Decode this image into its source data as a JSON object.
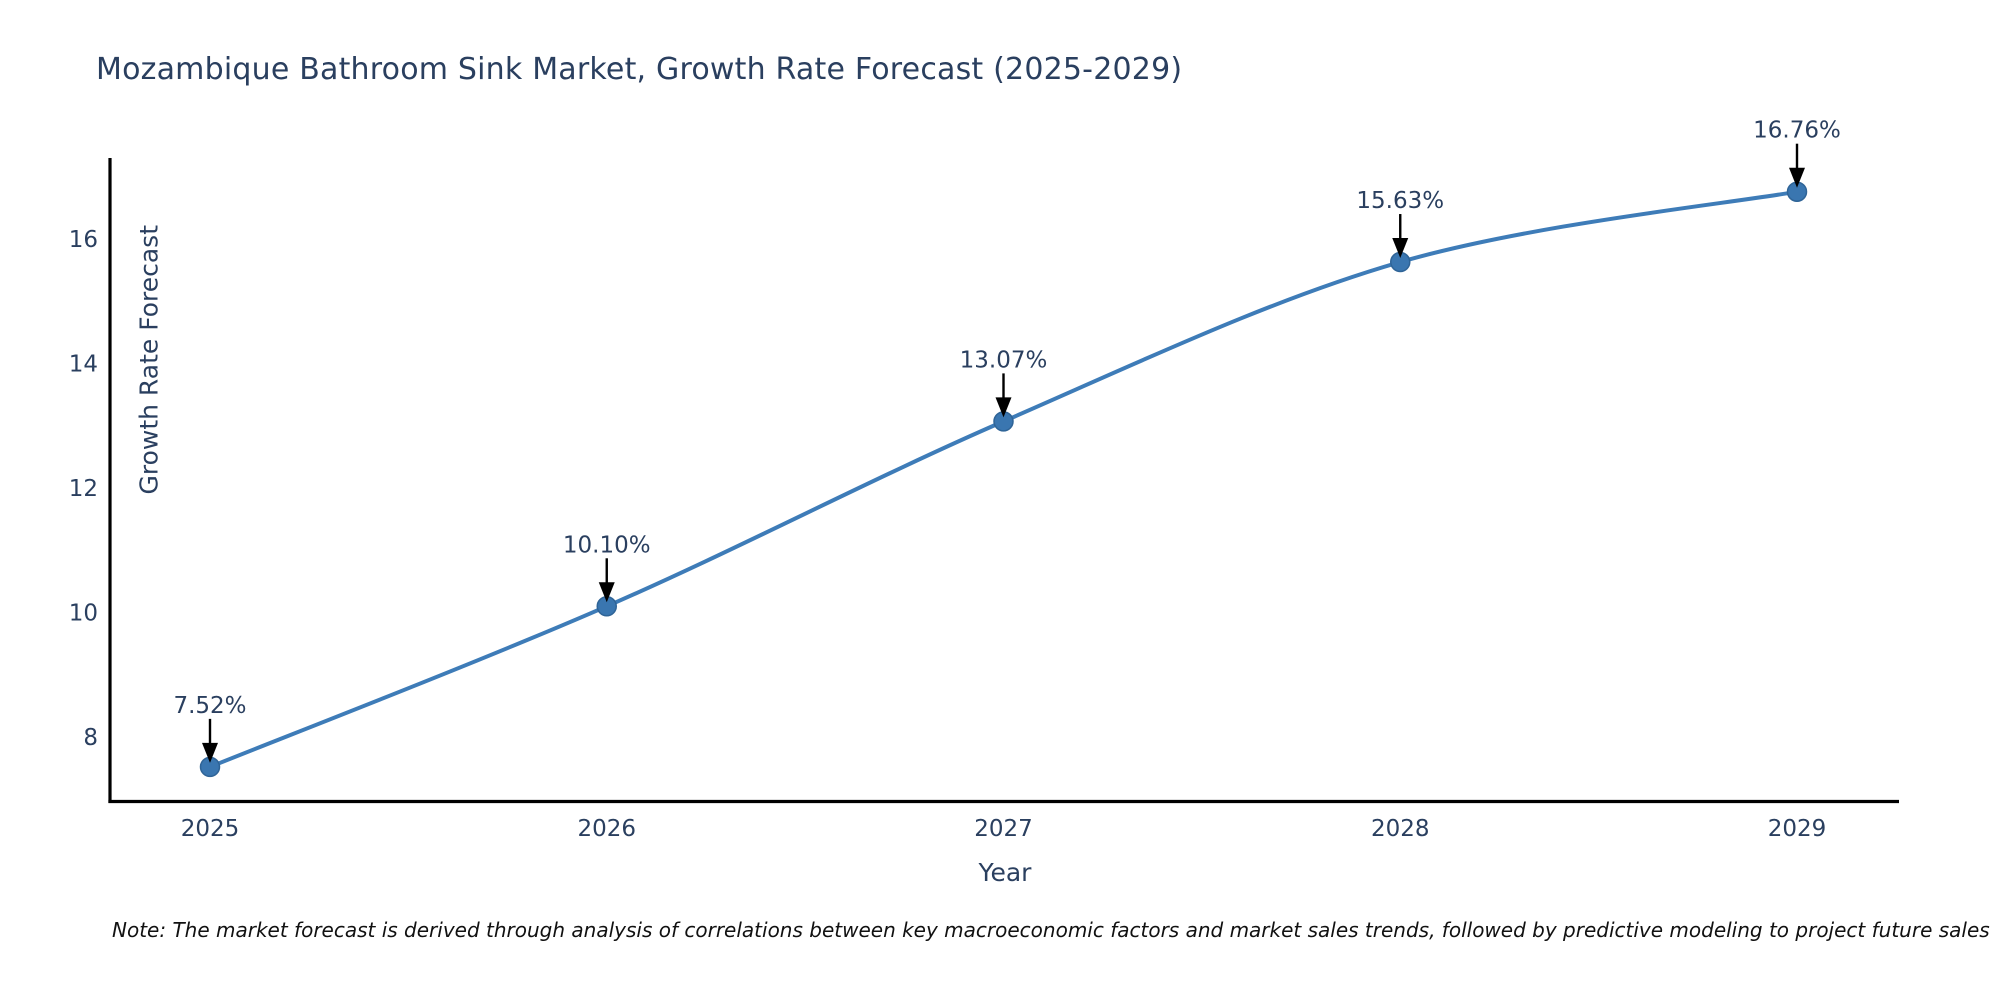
{
  "chart_data": {
    "type": "line",
    "title": "Mozambique Bathroom Sink Market, Growth Rate Forecast (2025-2029)",
    "xlabel": "Year",
    "ylabel": "Growth Rate Forecast",
    "categories": [
      "2025",
      "2026",
      "2027",
      "2028",
      "2029"
    ],
    "series": [
      {
        "name": "Growth Rate Forecast",
        "values": [
          7.52,
          10.1,
          13.07,
          15.63,
          16.76
        ]
      }
    ],
    "point_labels": [
      "7.52%",
      "10.10%",
      "13.07%",
      "15.63%",
      "16.76%"
    ],
    "yticks": [
      8,
      10,
      12,
      14,
      16
    ],
    "ylim": [
      6.9,
      17.3
    ],
    "grid": false,
    "legend_position": "none",
    "line_shape": "spline",
    "colors": {
      "line": "#3e7cb8",
      "marker": "#3a76b0",
      "marker_stroke": "#2f6497",
      "axis": "#000000",
      "text": "#2a3f5f",
      "annotation_arrow": "#000000"
    }
  },
  "note": {
    "text": "Note: The market forecast is derived through analysis of correlations between key macroeconomic factors and market sales trends, followed by predictive modeling to project future sales"
  }
}
